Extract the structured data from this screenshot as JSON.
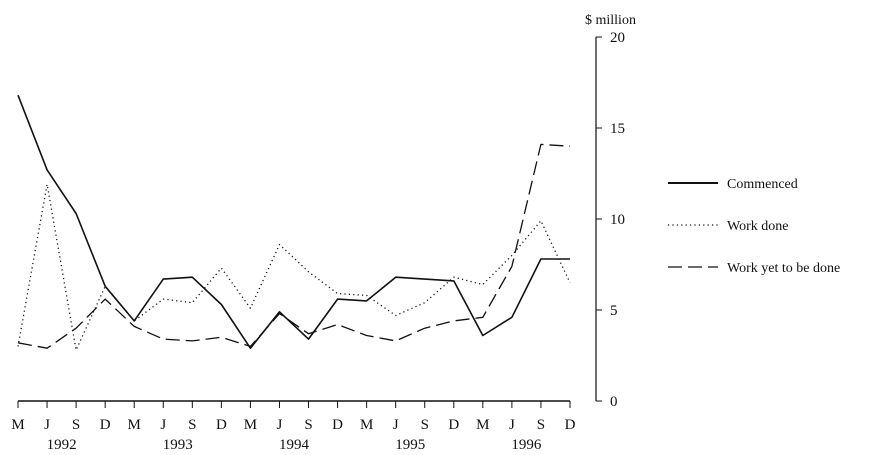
{
  "chart_data": {
    "type": "line",
    "ylabel": "$ million",
    "ylim": [
      0,
      20
    ],
    "yticks": [
      "0",
      "5",
      "10",
      "15",
      "20"
    ],
    "x": [
      "M",
      "J",
      "S",
      "D",
      "M",
      "J",
      "S",
      "D",
      "M",
      "J",
      "S",
      "D",
      "M",
      "J",
      "S",
      "D",
      "M",
      "J",
      "S",
      "D"
    ],
    "year_labels": [
      "1992",
      "1993",
      "1994",
      "1995",
      "1996"
    ],
    "series": [
      {
        "name": "Commenced",
        "style": "solid",
        "color": "#111111",
        "values": [
          16.8,
          12.7,
          10.3,
          6.3,
          4.4,
          6.7,
          6.8,
          5.3,
          2.9,
          4.9,
          3.4,
          5.6,
          5.5,
          6.8,
          6.7,
          6.6,
          3.6,
          4.6,
          7.8,
          7.8
        ]
      },
      {
        "name": "Work done",
        "style": "dotted",
        "color": "#111111",
        "values": [
          3.0,
          11.9,
          2.8,
          6.3,
          4.4,
          5.6,
          5.4,
          7.3,
          5.1,
          8.6,
          7.1,
          5.9,
          5.8,
          4.7,
          5.4,
          6.8,
          6.4,
          8.0,
          9.9,
          6.5
        ]
      },
      {
        "name": "Work yet to be done",
        "style": "dashed",
        "color": "#111111",
        "values": [
          3.2,
          2.9,
          4.0,
          5.6,
          4.1,
          3.4,
          3.3,
          3.5,
          3.0,
          4.8,
          3.7,
          4.2,
          3.6,
          3.3,
          4.0,
          4.4,
          4.6,
          7.4,
          14.1,
          14.0
        ]
      }
    ],
    "legend_position": "right",
    "grid": false
  }
}
